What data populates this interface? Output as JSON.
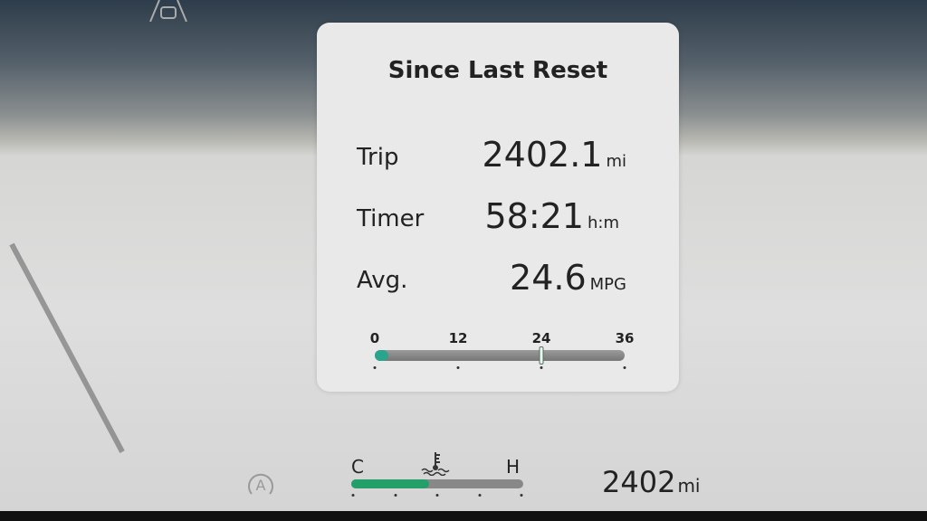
{
  "card": {
    "title": "Since Last Reset",
    "rows": [
      {
        "label": "Trip",
        "value": "2402.1",
        "unit": "mi"
      },
      {
        "label": "Timer",
        "value": "58:21",
        "unit": "h:m"
      },
      {
        "label": "Avg.",
        "value": "24.6",
        "unit": "MPG"
      }
    ],
    "scale": {
      "ticks": [
        "0",
        "12",
        "24",
        "36"
      ],
      "min": 0,
      "max": 36,
      "fill_value": 2,
      "marker_value": 24,
      "fill_color": "#2aa58c"
    }
  },
  "coolant": {
    "cold_label": "C",
    "hot_label": "H",
    "level_percent": 45,
    "icon": "coolant-temperature-icon",
    "fill_color": "#23a06a"
  },
  "odometer": {
    "value": "2402",
    "unit": "mi"
  },
  "icons": {
    "top_left": "lane-assist-car-icon",
    "bottom_left": "auto-hold-icon"
  }
}
